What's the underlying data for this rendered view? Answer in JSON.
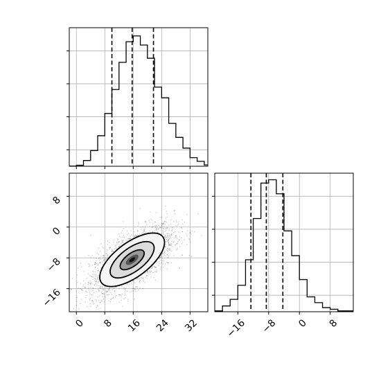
{
  "chart_data": [
    {
      "id": "marginal-x",
      "type": "bar",
      "title": "",
      "xlabel": "",
      "ylabel": "",
      "xlim": [
        -2,
        37
      ],
      "bin_edges": [
        -2,
        0,
        2,
        4,
        6,
        8,
        10,
        12,
        14,
        16,
        18,
        20,
        22,
        24,
        26,
        28,
        30,
        32,
        34,
        36,
        38
      ],
      "values": [
        0.1,
        0.6,
        3.5,
        9.5,
        18.5,
        32,
        46.5,
        63,
        75.5,
        79,
        73.5,
        65.5,
        48,
        41.5,
        26,
        17.5,
        11,
        5.2,
        3,
        0.8
      ],
      "ylim": [
        0,
        84
      ],
      "y_ticks": [
        10,
        30,
        50,
        70
      ],
      "quantiles": [
        10.0,
        15.7,
        21.7
      ],
      "x_ticks": [
        0,
        8,
        16,
        24,
        32
      ],
      "grid": true
    },
    {
      "id": "joint-xy",
      "type": "scatter",
      "title": "",
      "xlim": [
        -2,
        37
      ],
      "ylim": [
        -22,
        14
      ],
      "x_ticks": [
        0,
        8,
        16,
        24,
        32
      ],
      "y_ticks": [
        -16,
        -8,
        0,
        8
      ],
      "x_tick_labels": [
        "0",
        "8",
        "16",
        "24",
        "32"
      ],
      "y_tick_labels": [
        "−16",
        "−8",
        "0",
        "8"
      ],
      "center": [
        15.7,
        -8.5
      ],
      "std": [
        5.9,
        4.5
      ],
      "correlation": 0.65,
      "n_points": 5000,
      "contour_levels": [
        "inner",
        "middle",
        "outer"
      ],
      "contour_sigma": [
        0.5,
        1.0,
        1.5
      ],
      "grid": true
    },
    {
      "id": "marginal-y",
      "type": "bar",
      "title": "",
      "xlabel": "",
      "ylabel": "",
      "xlim": [
        -22,
        14
      ],
      "bin_edges": [
        -22,
        -20,
        -18,
        -16,
        -14,
        -12,
        -10,
        -8,
        -6,
        -4,
        -2,
        0,
        2,
        4,
        6,
        8,
        10,
        12,
        14
      ],
      "values": [
        0.5,
        3.5,
        7.5,
        16,
        31.5,
        56.5,
        78,
        80,
        71.5,
        49,
        34,
        19.5,
        9,
        5.5,
        2.5,
        1.5,
        0.5,
        0.5
      ],
      "ylim": [
        0,
        84
      ],
      "y_ticks": [
        10,
        30,
        50,
        70
      ],
      "quantiles": [
        -12.6,
        -8.6,
        -4.3
      ],
      "x_ticks": [
        -16,
        -8,
        0,
        8
      ],
      "x_tick_labels": [
        "−16",
        "−8",
        "0",
        "8"
      ],
      "grid": true
    }
  ]
}
